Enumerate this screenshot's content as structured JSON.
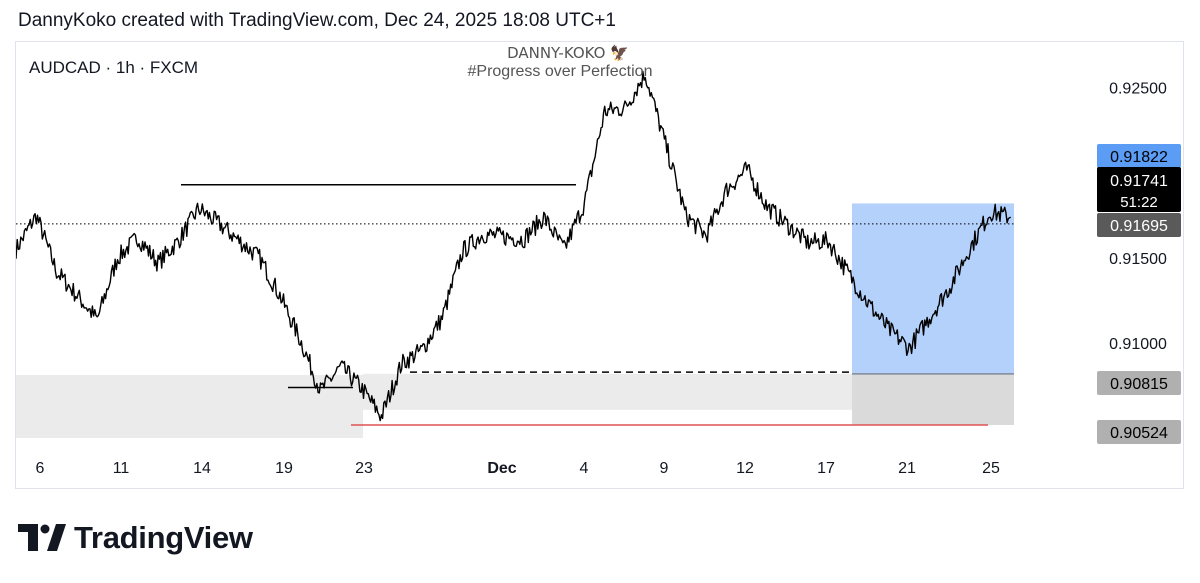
{
  "caption": {
    "author": "DannyKoko",
    "text": "DannyKoko created with TradingView.com, Dec 24, 2025 18:08 UTC+1"
  },
  "brand": {
    "name": "TradingView",
    "logo_icon": "tradingview-logo-icon"
  },
  "chart_data": {
    "type": "line",
    "symbol_label": "AUDCAD · 1h · FXCM",
    "watermark": {
      "line1": "DANNY-KOKO 🦅",
      "line2": "#Progress over Perfection"
    },
    "x_ticks": [
      "6",
      "11",
      "14",
      "19",
      "23",
      "Dec",
      "4",
      "9",
      "12",
      "17",
      "21",
      "25"
    ],
    "y_ticks": [
      "0.92500",
      "0.91500",
      "0.91000"
    ],
    "ylim": [
      0.9042,
      0.9265
    ],
    "series": [
      {
        "x": [
          "Nov 5",
          "Nov 6",
          "Nov 7",
          "Nov 9",
          "Nov 10",
          "Nov 11",
          "Nov 12",
          "Nov 13",
          "Nov 14",
          "Nov 15",
          "Nov 17",
          "Nov 18",
          "Nov 19",
          "Nov 20",
          "Nov 21",
          "Nov 22",
          "Nov 23",
          "Nov 24",
          "Nov 25",
          "Nov 26",
          "Nov 27",
          "Nov 28",
          "Nov 30",
          "Dec 1",
          "Dec 2",
          "Dec 3",
          "Dec 4",
          "Dec 5",
          "Dec 6",
          "Dec 8",
          "Dec 9",
          "Dec 10",
          "Dec 11",
          "Dec 12",
          "Dec 14",
          "Dec 15",
          "Dec 16",
          "Dec 17",
          "Dec 18",
          "Dec 19",
          "Dec 21",
          "Dec 22",
          "Dec 23",
          "Dec 24"
        ],
        "values": [
          0.9155,
          0.9175,
          0.9142,
          0.9114,
          0.915,
          0.9162,
          0.9147,
          0.916,
          0.9179,
          0.917,
          0.915,
          0.9128,
          0.9102,
          0.9072,
          0.9086,
          0.9074,
          0.9057,
          0.9088,
          0.9096,
          0.9115,
          0.9154,
          0.9164,
          0.9161,
          0.9174,
          0.9155,
          0.9182,
          0.9236,
          0.9238,
          0.9258,
          0.9175,
          0.9163,
          0.919,
          0.9202,
          0.918,
          0.9159,
          0.916,
          0.9141,
          0.9123,
          0.9108,
          0.9097,
          0.9133,
          0.9156,
          0.9177,
          0.9174
        ]
      }
    ],
    "price_labels": {
      "top": "0.91822",
      "current": "0.91741",
      "countdown": "51:22",
      "previous": "0.91695",
      "lower1": "0.90815",
      "lower2": "0.90524"
    },
    "levels": {
      "dotted_current": 0.917,
      "resistance_line": 0.9193,
      "support_dashed": 0.9083,
      "low_line": 0.9074,
      "red_line": 0.9052,
      "long_position": {
        "entry": 0.9082,
        "target": 0.9182,
        "stop": 0.9052
      }
    },
    "colors": {
      "price_line": "#000000",
      "target_zone": "#b3d1fa",
      "stop_zone": "#e3e3e3",
      "demand_zone": "#ebebeb",
      "red_line": "#e05252",
      "label_blue": "#5b9cf5",
      "label_black": "#000000",
      "label_gray": "#5a5a5a",
      "label_lightgray": "#b0b0b0"
    },
    "grid": false
  }
}
